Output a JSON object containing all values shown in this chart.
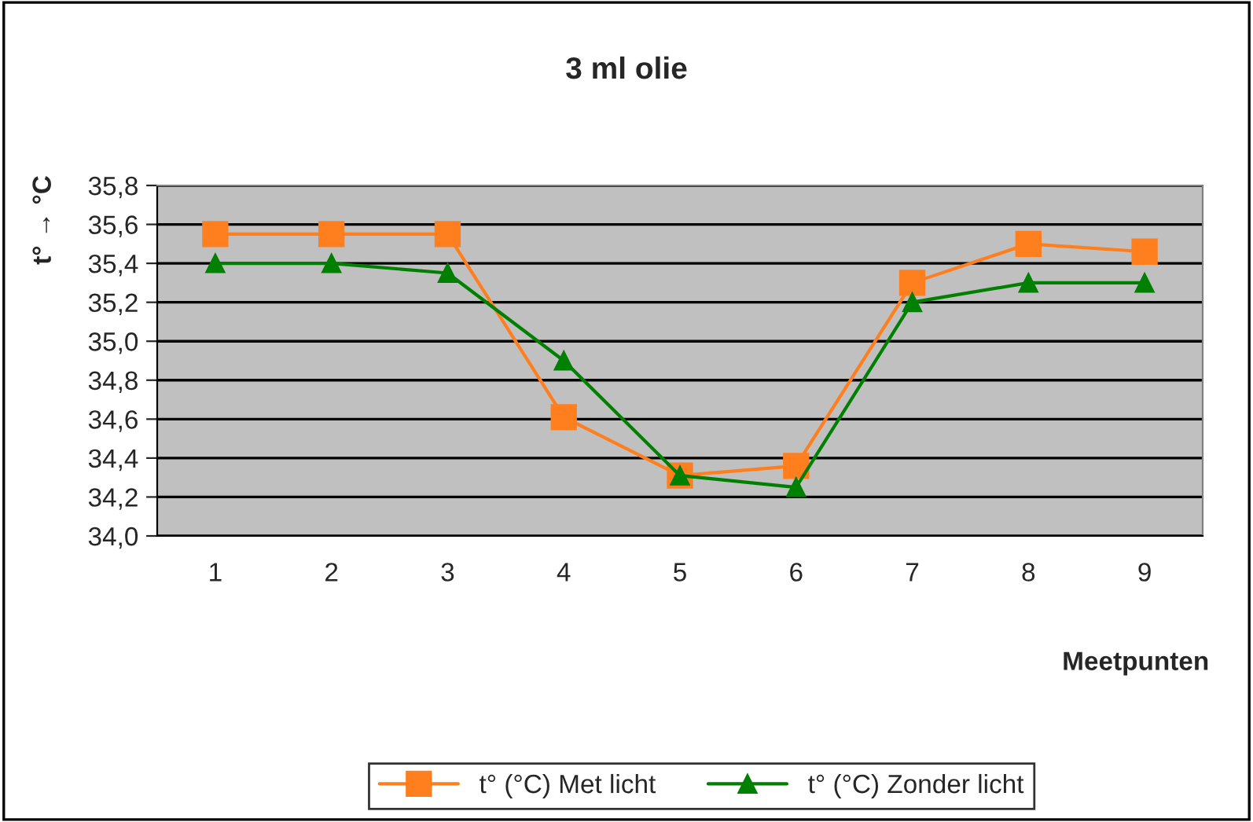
{
  "chart_data": {
    "type": "line",
    "title": "3 ml olie",
    "xlabel": "Meetpunten",
    "ylabel": "t° → °C",
    "categories": [
      "1",
      "2",
      "3",
      "4",
      "5",
      "6",
      "7",
      "8",
      "9"
    ],
    "series": [
      {
        "name": "t° (°C) Met licht",
        "color": "#ff7f1e",
        "marker": "square",
        "values": [
          35.55,
          35.55,
          35.55,
          34.61,
          34.31,
          34.36,
          35.3,
          35.5,
          35.46
        ]
      },
      {
        "name": "t° (°C) Zonder licht",
        "color": "#008000",
        "marker": "triangle",
        "values": [
          35.4,
          35.4,
          35.35,
          34.9,
          34.31,
          34.25,
          35.2,
          35.3,
          35.3
        ]
      }
    ],
    "ylim": [
      34.0,
      35.8
    ],
    "yticks": [
      {
        "value": 34.0,
        "label": "34,0"
      },
      {
        "value": 34.2,
        "label": "34,2"
      },
      {
        "value": 34.4,
        "label": "34,4"
      },
      {
        "value": 34.6,
        "label": "34,6"
      },
      {
        "value": 34.8,
        "label": "34,8"
      },
      {
        "value": 35.0,
        "label": "35,0"
      },
      {
        "value": 35.2,
        "label": "35,2"
      },
      {
        "value": 35.4,
        "label": "35,4"
      },
      {
        "value": 35.6,
        "label": "35,6"
      },
      {
        "value": 35.8,
        "label": "35,8"
      }
    ],
    "grid": "y",
    "legend": "bottom",
    "line_style": "solid"
  }
}
